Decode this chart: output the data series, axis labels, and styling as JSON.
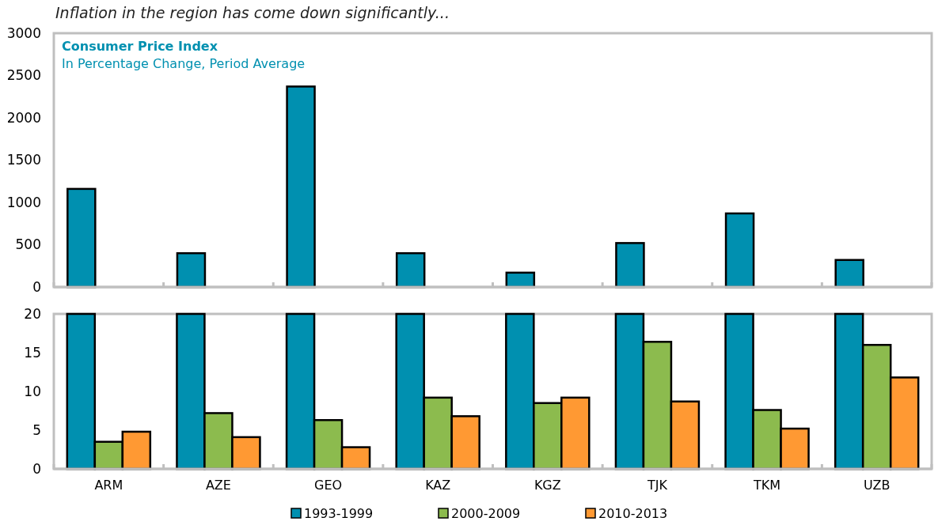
{
  "chart_data": [
    {
      "type": "bar",
      "title": "Inflation in the region has come down significantly...",
      "subtitle": "Consumer Price Index",
      "annotations": [
        "In Percentage Change, Period Average"
      ],
      "categories": [
        null,
        null,
        null,
        null,
        null,
        null,
        null,
        null
      ],
      "series": [
        {
          "color": "#0090b0",
          "values": [
            1160,
            400,
            2370,
            400,
            170,
            520,
            870,
            320
          ]
        }
      ],
      "ylim": [
        0,
        3000
      ],
      "yticks": [
        0,
        500,
        1000,
        1500,
        2000,
        2500,
        3000
      ],
      "grid": false,
      "tick_labels": "y",
      "legend": false
    },
    {
      "type": "bar",
      "categories": [
        "ARM",
        "AZE",
        "GEO",
        "KAZ",
        "KGZ",
        "TJK",
        "TKM",
        "UZB"
      ],
      "series": [
        {
          "name": "1993-1999",
          "color": "#0090b0",
          "values": [
            20,
            20,
            20,
            20,
            20,
            20,
            20,
            20
          ]
        },
        {
          "name": "2000-2009",
          "color": "#8cbb4e",
          "values": [
            3.5,
            7.2,
            6.3,
            9.2,
            8.5,
            16.4,
            7.6,
            16.0
          ]
        },
        {
          "name": "2010-2013",
          "color": "#ff9933",
          "values": [
            4.8,
            4.1,
            2.8,
            6.8,
            9.2,
            8.7,
            5.2,
            11.8
          ]
        }
      ],
      "ylim": [
        0,
        20
      ],
      "yticks": [
        0,
        5,
        10,
        15,
        20
      ],
      "grid": false,
      "legend": "bottom"
    }
  ]
}
